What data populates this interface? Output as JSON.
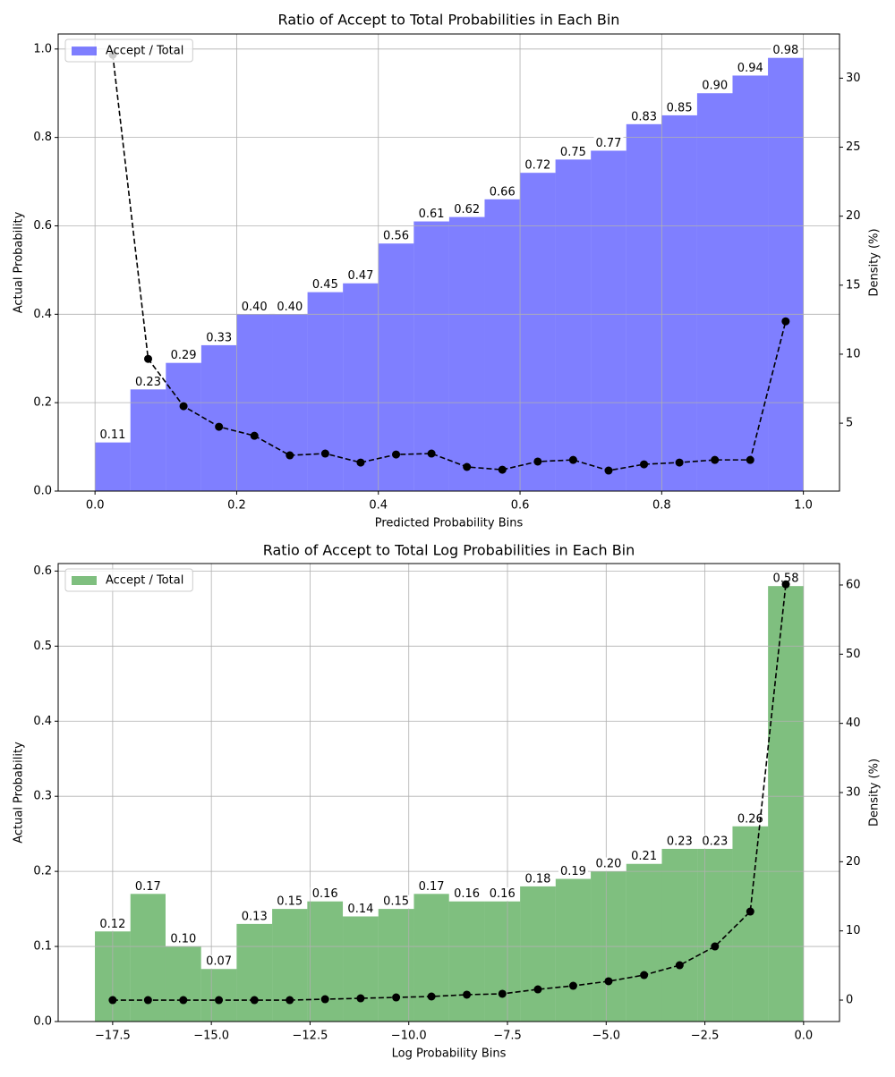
{
  "chart_data": [
    {
      "type": "histogram",
      "title": "Ratio of Accept to Total Probabilities in Each Bin",
      "xlabel": "Predicted Probability Bins",
      "ylabel": "Actual Probability",
      "y2label": "Density (%)",
      "bins": [
        0,
        0.05,
        0.1,
        0.15,
        0.2,
        0.25,
        0.3,
        0.35,
        0.4,
        0.45,
        0.5,
        0.55,
        0.6,
        0.65,
        0.7,
        0.75,
        0.8,
        0.85,
        0.9,
        0.95,
        1.0
      ],
      "series": [
        {
          "name": "Accept / Total",
          "color": "blue",
          "alpha": 0.5,
          "values": [
            0.11,
            0.23,
            0.29,
            0.33,
            0.4,
            0.4,
            0.45,
            0.47,
            0.56,
            0.61,
            0.62,
            0.66,
            0.72,
            0.75,
            0.77,
            0.83,
            0.85,
            0.9,
            0.94,
            0.98
          ],
          "value_labels": [
            "0.11",
            "0.23",
            "0.29",
            "0.33",
            "0.40",
            "0.40",
            "0.45",
            "0.47",
            "0.56",
            "0.61",
            "0.62",
            "0.66",
            "0.72",
            "0.75",
            "0.77",
            "0.83",
            "0.85",
            "0.90",
            "0.94",
            "0.98"
          ]
        },
        {
          "color": "black",
          "axis": "y2",
          "style": "dashed",
          "marker": "circle",
          "values": [
            31.7,
            9.66,
            6.23,
            4.74,
            4.09,
            2.67,
            2.8,
            2.15,
            2.73,
            2.8,
            1.83,
            1.63,
            2.22,
            2.34,
            1.57,
            2.02,
            2.15,
            2.34,
            2.34,
            12.38
          ]
        }
      ],
      "xlim": [
        -0.052,
        1.051
      ],
      "ylim": [
        0,
        1.034
      ],
      "y2lim": [
        0.08,
        33.2
      ],
      "xticks": [
        {
          "value": 0,
          "label": "0.0"
        },
        0.2,
        0.4,
        0.6,
        0.8,
        {
          "value": 1,
          "label": "1.0"
        }
      ],
      "yticks": [
        {
          "value": 0,
          "label": "0.0"
        },
        0.2,
        0.4,
        0.6,
        0.8,
        {
          "value": 1,
          "label": "1.0"
        }
      ],
      "y2ticks": [
        5,
        10,
        15,
        20,
        25,
        30
      ],
      "grid": true,
      "legend": "upper left"
    },
    {
      "type": "histogram",
      "title": "Ratio of Accept to Total Log Probabilities in Each Bin",
      "xlabel": "Log Probability Bins",
      "ylabel": "Actual Probability",
      "y2label": "Density (%)",
      "bins": [
        -17.95,
        -17.05,
        -16.16,
        -15.26,
        -14.36,
        -13.46,
        -12.57,
        -11.67,
        -10.77,
        -9.87,
        -8.98,
        -8.08,
        -7.18,
        -6.28,
        -5.39,
        -4.49,
        -3.59,
        -2.69,
        -1.8,
        -0.9,
        0
      ],
      "series": [
        {
          "name": "Accept / Total",
          "color": "green",
          "alpha": 0.5,
          "values": [
            0.12,
            0.17,
            0.1,
            0.07,
            0.13,
            0.15,
            0.16,
            0.14,
            0.15,
            0.17,
            0.16,
            0.16,
            0.18,
            0.19,
            0.2,
            0.21,
            0.23,
            0.23,
            0.26,
            0.58
          ],
          "value_labels": [
            "0.12",
            "0.17",
            "0.10",
            "0.07",
            "0.13",
            "0.15",
            "0.16",
            "0.14",
            "0.15",
            "0.17",
            "0.16",
            "0.16",
            "0.18",
            "0.19",
            "0.20",
            "0.21",
            "0.23",
            "0.23",
            "0.26",
            "0.58"
          ]
        },
        {
          "color": "black",
          "axis": "y2",
          "style": "dashed",
          "marker": "circle",
          "values": [
            0,
            0,
            0,
            0,
            0,
            0,
            0.13,
            0.26,
            0.39,
            0.52,
            0.78,
            0.91,
            1.55,
            2.07,
            2.72,
            3.62,
            5.04,
            7.76,
            12.8,
            60.1
          ]
        }
      ],
      "xlim": [
        -18.88,
        0.91
      ],
      "ylim": [
        0,
        0.61
      ],
      "y2lim": [
        -3.1,
        63.1
      ],
      "xticks": [
        {
          "value": -17.5,
          "label": "−17.5"
        },
        {
          "value": -15,
          "label": "−15.0"
        },
        {
          "value": -12.5,
          "label": "−12.5"
        },
        {
          "value": -10,
          "label": "−10.0"
        },
        {
          "value": -7.5,
          "label": "−7.5"
        },
        {
          "value": -5,
          "label": "−5.0"
        },
        {
          "value": -2.5,
          "label": "−2.5"
        },
        {
          "value": 0,
          "label": "0.0"
        }
      ],
      "yticks": [
        {
          "value": 0,
          "label": "0.0"
        },
        0.1,
        0.2,
        0.3,
        0.4,
        0.5,
        0.6
      ],
      "y2ticks": [
        0,
        10,
        20,
        30,
        40,
        50,
        60
      ],
      "grid": true,
      "legend": "upper left"
    }
  ]
}
